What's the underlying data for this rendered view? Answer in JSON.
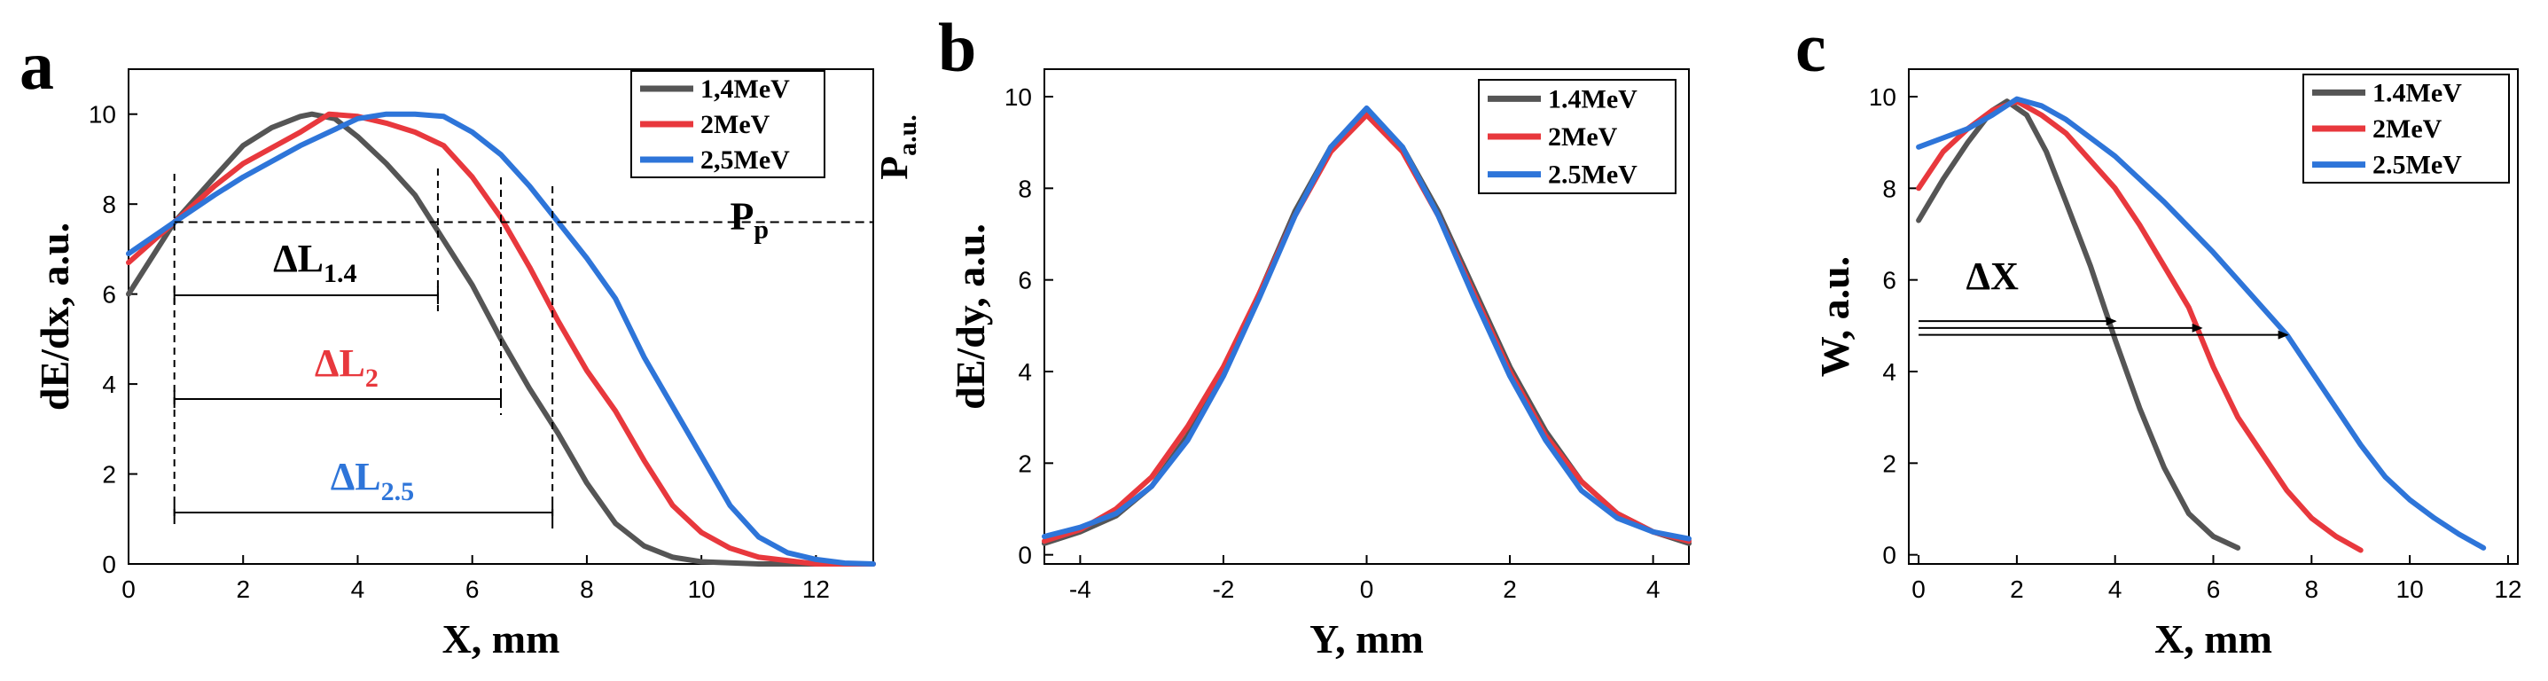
{
  "chart_data": [
    {
      "panel": "a",
      "type": "line",
      "xlabel": "X, mm",
      "ylabel": "dE/dx,  a.u.",
      "right_axis_label": "P",
      "right_axis_label_sub": "a.u.",
      "xlim": [
        0,
        13
      ],
      "ylim": [
        0,
        11
      ],
      "xticks": [
        "0",
        "2",
        "4",
        "6",
        "8",
        "10",
        "12"
      ],
      "yticks": [
        "0",
        "2",
        "4",
        "6",
        "8",
        "10"
      ],
      "series": [
        {
          "name": "1,4MeV",
          "color": "#555555",
          "x": [
            0,
            0.8,
            1.5,
            2.0,
            2.5,
            3.0,
            3.2,
            3.6,
            4.0,
            4.5,
            5.0,
            5.5,
            6.0,
            6.5,
            7.0,
            7.5,
            8.0,
            8.5,
            9.0,
            9.5,
            10.0,
            11.0,
            12.0,
            13.0
          ],
          "y": [
            6.0,
            7.6,
            8.6,
            9.3,
            9.7,
            9.95,
            10.0,
            9.9,
            9.5,
            8.9,
            8.2,
            7.2,
            6.2,
            5.0,
            3.9,
            2.9,
            1.8,
            0.9,
            0.4,
            0.15,
            0.05,
            0.0,
            0.0,
            0.0
          ]
        },
        {
          "name": "2MeV",
          "color": "#e8383d",
          "x": [
            0,
            0.8,
            1.5,
            2.0,
            3.0,
            3.5,
            4.0,
            4.5,
            5.0,
            5.5,
            6.0,
            6.5,
            7.0,
            7.5,
            8.0,
            8.5,
            9.0,
            9.5,
            10.0,
            10.5,
            11.0,
            12.0,
            13.0
          ],
          "y": [
            6.7,
            7.6,
            8.4,
            8.9,
            9.6,
            10.0,
            9.95,
            9.8,
            9.6,
            9.3,
            8.6,
            7.7,
            6.6,
            5.4,
            4.3,
            3.4,
            2.3,
            1.3,
            0.7,
            0.35,
            0.15,
            0.0,
            0.0
          ]
        },
        {
          "name": "2,5MeV",
          "color": "#2e75d9",
          "x": [
            0,
            0.8,
            1.5,
            2.0,
            3.0,
            4.0,
            4.5,
            5.0,
            5.5,
            6.0,
            6.5,
            7.0,
            7.5,
            8.0,
            8.5,
            9.0,
            9.5,
            10.0,
            10.5,
            11.0,
            11.5,
            12.0,
            12.5,
            13.0
          ],
          "y": [
            6.9,
            7.6,
            8.2,
            8.6,
            9.3,
            9.9,
            10.0,
            10.0,
            9.95,
            9.6,
            9.1,
            8.4,
            7.6,
            6.8,
            5.9,
            4.6,
            3.5,
            2.4,
            1.3,
            0.6,
            0.25,
            0.1,
            0.02,
            0.0
          ]
        }
      ],
      "legend": {
        "position": "top-right",
        "entries": [
          "1,4MeV",
          "2MeV",
          "2,5MeV"
        ]
      },
      "annotations": {
        "reference_level": 7.6,
        "reference_label": "P",
        "reference_label_sub": "p",
        "start_x": 0.8,
        "right_line_x": 13,
        "widths": [
          {
            "label": "ΔL",
            "sub": "1.4",
            "end_x": 5.4,
            "color": "#000000"
          },
          {
            "label": "ΔL",
            "sub": "2",
            "end_x": 6.5,
            "color": "#e8383d"
          },
          {
            "label": "ΔL",
            "sub": "2.5",
            "end_x": 7.4,
            "color": "#2e75d9"
          }
        ]
      }
    },
    {
      "panel": "b",
      "type": "line",
      "xlabel": "Y, mm",
      "ylabel": "dE/dy, a.u.",
      "xlim": [
        -4.5,
        4.5
      ],
      "ylim": [
        -0.2,
        10.6
      ],
      "xticks": [
        "-4",
        "-2",
        "0",
        "2",
        "4"
      ],
      "yticks": [
        "0",
        "2",
        "4",
        "6",
        "8",
        "10"
      ],
      "series": [
        {
          "name": "1.4MeV",
          "color": "#555555",
          "x": [
            -4.5,
            -4.0,
            -3.5,
            -3.0,
            -2.5,
            -2.0,
            -1.5,
            -1.0,
            -0.5,
            0.0,
            0.5,
            1.0,
            1.5,
            2.0,
            2.5,
            3.0,
            3.5,
            4.0,
            4.5
          ],
          "y": [
            0.25,
            0.5,
            0.85,
            1.5,
            2.6,
            4.0,
            5.7,
            7.5,
            8.9,
            9.7,
            8.9,
            7.5,
            5.8,
            4.1,
            2.7,
            1.6,
            0.9,
            0.5,
            0.25
          ]
        },
        {
          "name": "2MeV",
          "color": "#e8383d",
          "x": [
            -4.5,
            -4.0,
            -3.5,
            -3.0,
            -2.5,
            -2.0,
            -1.5,
            -1.0,
            -0.5,
            0.0,
            0.5,
            1.0,
            1.5,
            2.0,
            2.5,
            3.0,
            3.5,
            4.0,
            4.5
          ],
          "y": [
            0.3,
            0.55,
            1.0,
            1.7,
            2.8,
            4.1,
            5.7,
            7.4,
            8.8,
            9.6,
            8.8,
            7.4,
            5.7,
            4.0,
            2.6,
            1.6,
            0.9,
            0.5,
            0.3
          ]
        },
        {
          "name": "2.5MeV",
          "color": "#2e75d9",
          "x": [
            -4.5,
            -4.0,
            -3.5,
            -3.0,
            -2.5,
            -2.0,
            -1.5,
            -1.0,
            -0.5,
            0.0,
            0.5,
            1.0,
            1.5,
            2.0,
            2.5,
            3.0,
            3.5,
            4.0,
            4.5
          ],
          "y": [
            0.4,
            0.6,
            0.9,
            1.5,
            2.5,
            3.9,
            5.6,
            7.4,
            8.9,
            9.75,
            8.9,
            7.4,
            5.6,
            3.9,
            2.5,
            1.4,
            0.8,
            0.5,
            0.35
          ]
        }
      ],
      "legend": {
        "position": "top-right",
        "entries": [
          "1.4MeV",
          "2MeV",
          "2.5MeV"
        ]
      }
    },
    {
      "panel": "c",
      "type": "line",
      "xlabel": "X, mm",
      "ylabel": "W, a.u.",
      "xlim": [
        -0.2,
        12.2
      ],
      "ylim": [
        -0.2,
        10.6
      ],
      "xticks": [
        "0",
        "2",
        "4",
        "6",
        "8",
        "10",
        "12"
      ],
      "yticks": [
        "0",
        "2",
        "4",
        "6",
        "8",
        "10"
      ],
      "series": [
        {
          "name": "1.4MeV",
          "color": "#555555",
          "x": [
            0,
            0.5,
            1.0,
            1.5,
            1.8,
            2.2,
            2.6,
            3.0,
            3.5,
            4.0,
            4.5,
            5.0,
            5.5,
            6.0,
            6.5
          ],
          "y": [
            7.3,
            8.2,
            9.0,
            9.7,
            9.9,
            9.6,
            8.8,
            7.7,
            6.3,
            4.7,
            3.2,
            1.9,
            0.9,
            0.4,
            0.15
          ]
        },
        {
          "name": "2MeV",
          "color": "#e8383d",
          "x": [
            0,
            0.5,
            1.0,
            1.5,
            2.0,
            2.5,
            3.0,
            3.5,
            4.0,
            4.5,
            5.0,
            5.5,
            6.0,
            6.5,
            7.0,
            7.5,
            8.0,
            8.5,
            9.0
          ],
          "y": [
            8.0,
            8.8,
            9.3,
            9.7,
            9.9,
            9.6,
            9.2,
            8.6,
            8.0,
            7.2,
            6.3,
            5.4,
            4.1,
            3.0,
            2.2,
            1.4,
            0.8,
            0.4,
            0.1
          ]
        },
        {
          "name": "2.5MeV",
          "color": "#2e75d9",
          "x": [
            0,
            0.5,
            1.0,
            1.5,
            2.0,
            2.5,
            3.0,
            3.5,
            4.0,
            5.0,
            6.0,
            7.0,
            7.5,
            8.0,
            8.5,
            9.0,
            9.5,
            10.0,
            10.5,
            11.0,
            11.5
          ],
          "y": [
            8.9,
            9.1,
            9.3,
            9.6,
            9.95,
            9.8,
            9.5,
            9.1,
            8.7,
            7.7,
            6.6,
            5.4,
            4.8,
            4.0,
            3.2,
            2.4,
            1.7,
            1.2,
            0.8,
            0.45,
            0.15
          ]
        }
      ],
      "legend": {
        "position": "top-right",
        "entries": [
          "1.4MeV",
          "2MeV",
          "2.5MeV"
        ]
      },
      "annotations": {
        "label": "ΔX",
        "arrows": [
          {
            "y": 5.1,
            "end_x": 4.0
          },
          {
            "y": 4.95,
            "end_x": 5.75
          },
          {
            "y": 4.8,
            "end_x": 7.5
          }
        ]
      }
    }
  ]
}
